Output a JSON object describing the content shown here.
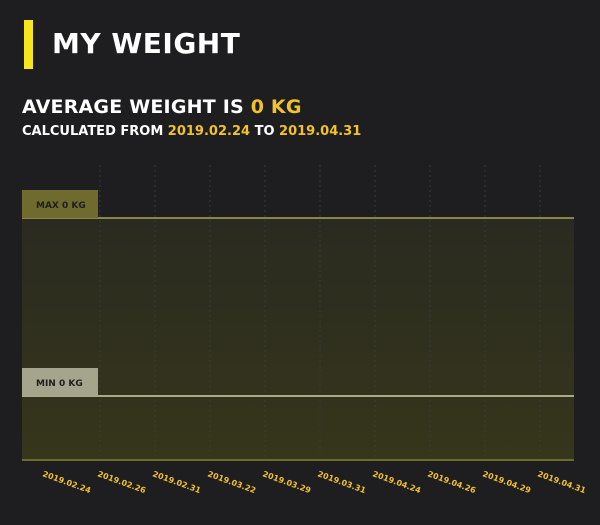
{
  "header": {
    "title": "MY WEIGHT"
  },
  "summary": {
    "avg_prefix": "AVERAGE WEIGHT IS",
    "avg_value": "0 KG",
    "calc_prefix": "CALCULATED FROM",
    "from_date": "2019.02.24",
    "to_word": "TO",
    "to_date": "2019.04.31"
  },
  "colors": {
    "background": "#1e1e20",
    "accent": "#f7e61d",
    "date_yellow": "#f2c12e",
    "max_line": "#8a8740",
    "min_line": "#a9a98a"
  },
  "chart_data": {
    "type": "line",
    "x": [
      "2019.02.24",
      "2019.02.26",
      "2019.02.31",
      "2019.03.22",
      "2019.03.29",
      "2019.03.31",
      "2019.04.24",
      "2019.04.26",
      "2019.04.29",
      "2019.04.31"
    ],
    "series": [
      {
        "values": [
          0,
          0,
          0,
          0,
          0,
          0,
          0,
          0,
          0,
          0
        ]
      }
    ],
    "markers": {
      "max_label": "MAX 0 KG",
      "min_label": "MIN 0 KG"
    },
    "grid": true
  }
}
